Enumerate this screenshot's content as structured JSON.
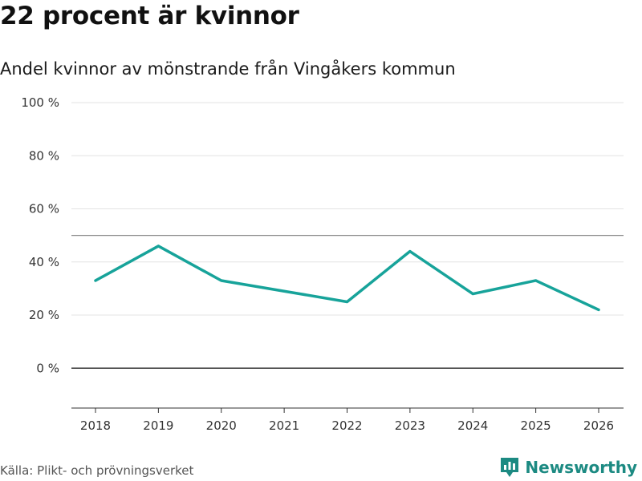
{
  "title": "22 procent är kvinnor",
  "subtitle": "Andel kvinnor av mönstrande från Vingåkers kommun",
  "source": "Källa: Plikt- och prövningsverket",
  "brand": {
    "name": "Newsworthy",
    "icon": "newsworthy-logo-icon"
  },
  "colors": {
    "line": "#17a39a",
    "brand": "#1c8a82",
    "grid": "#e3e3e3",
    "reference": "#888888",
    "zero": "#333333"
  },
  "chart_data": {
    "type": "line",
    "x": [
      "2018",
      "2019",
      "2020",
      "2021",
      "2022",
      "2023",
      "2024",
      "2025",
      "2026"
    ],
    "series": [
      {
        "values": [
          33,
          46,
          33,
          29,
          25,
          44,
          28,
          33,
          22
        ]
      }
    ],
    "y_ticks": [
      0,
      20,
      40,
      60,
      80,
      100
    ],
    "y_tick_labels": [
      "0 %",
      "20 %",
      "40 %",
      "60 %",
      "80 %",
      "100 %"
    ],
    "ylim": [
      -15,
      100
    ],
    "reference_line": 50,
    "grid": true,
    "xlabel": "",
    "ylabel": ""
  }
}
